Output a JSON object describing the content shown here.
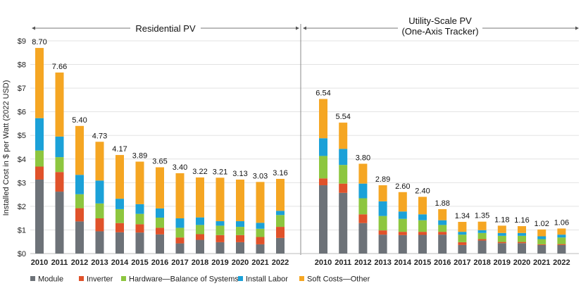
{
  "chart_data": {
    "type": "bar",
    "stacked": true,
    "ylabel": "Installed Cost in $ per Watt (2022 USD)",
    "ylim": [
      0,
      9
    ],
    "yticks": [
      "$0",
      "$1",
      "$2",
      "$3",
      "$4",
      "$5",
      "$6",
      "$7",
      "$8",
      "$9"
    ],
    "grid": true,
    "legend_position": "bottom",
    "series_names": [
      "Module",
      "Inverter",
      "Hardware—Balance of Systems",
      "Install Labor",
      "Soft Costs—Other"
    ],
    "colors": [
      "#6d7278",
      "#e0522a",
      "#8dc63f",
      "#1ba1d8",
      "#f5a623"
    ],
    "panels": [
      {
        "title": "Residential PV",
        "categories": [
          "2010",
          "2011",
          "2012",
          "2013",
          "2014",
          "2015",
          "2016",
          "2017",
          "2018",
          "2019",
          "2020",
          "2021",
          "2022"
        ],
        "totals": [
          "8.70",
          "7.66",
          "5.40",
          "4.73",
          "4.17",
          "3.89",
          "3.65",
          "3.40",
          "3.22",
          "3.21",
          "3.13",
          "3.03",
          "3.16"
        ],
        "series": [
          {
            "name": "Module",
            "values": [
              3.13,
              2.62,
              1.36,
              0.94,
              0.9,
              0.89,
              0.81,
              0.43,
              0.58,
              0.48,
              0.48,
              0.39,
              0.66
            ]
          },
          {
            "name": "Inverter",
            "values": [
              0.55,
              0.83,
              0.56,
              0.55,
              0.39,
              0.35,
              0.28,
              0.25,
              0.24,
              0.3,
              0.3,
              0.31,
              0.47
            ]
          },
          {
            "name": "Hardware—Balance of Systems",
            "values": [
              0.68,
              0.63,
              0.59,
              0.63,
              0.59,
              0.44,
              0.43,
              0.41,
              0.39,
              0.4,
              0.35,
              0.35,
              0.5
            ]
          },
          {
            "name": "Install Labor",
            "values": [
              1.37,
              0.87,
              0.82,
              0.97,
              0.44,
              0.41,
              0.39,
              0.4,
              0.32,
              0.19,
              0.24,
              0.25,
              0.18
            ]
          },
          {
            "name": "Soft Costs—Other",
            "values": [
              2.97,
              2.71,
              2.07,
              1.64,
              1.85,
              1.8,
              1.74,
              1.91,
              1.69,
              1.84,
              1.76,
              1.73,
              1.35
            ]
          }
        ]
      },
      {
        "title": "Utility-Scale PV",
        "subtitle": "(One-Axis Tracker)",
        "categories": [
          "2010",
          "2011",
          "2012",
          "2013",
          "2014",
          "2015",
          "2016",
          "2017",
          "2018",
          "2019",
          "2020",
          "2021",
          "2022"
        ],
        "totals": [
          "6.54",
          "5.54",
          "3.80",
          "2.89",
          "2.60",
          "2.40",
          "1.88",
          "1.34",
          "1.35",
          "1.18",
          "1.16",
          "1.02",
          "1.06"
        ],
        "series": [
          {
            "name": "Module",
            "values": [
              2.89,
              2.57,
              1.29,
              0.8,
              0.78,
              0.79,
              0.8,
              0.36,
              0.55,
              0.44,
              0.44,
              0.36,
              0.36
            ]
          },
          {
            "name": "Inverter",
            "values": [
              0.29,
              0.39,
              0.37,
              0.18,
              0.14,
              0.13,
              0.12,
              0.12,
              0.06,
              0.05,
              0.05,
              0.03,
              0.04
            ]
          },
          {
            "name": "Hardware—Balance of Systems",
            "values": [
              0.95,
              0.79,
              0.68,
              0.61,
              0.55,
              0.49,
              0.29,
              0.32,
              0.26,
              0.26,
              0.26,
              0.22,
              0.28
            ]
          },
          {
            "name": "Install Labor",
            "values": [
              0.75,
              0.68,
              0.62,
              0.62,
              0.31,
              0.25,
              0.2,
              0.12,
              0.12,
              0.12,
              0.12,
              0.12,
              0.12
            ]
          },
          {
            "name": "Soft Costs—Other",
            "values": [
              1.66,
              1.11,
              0.84,
              0.68,
              0.82,
              0.74,
              0.47,
              0.42,
              0.36,
              0.31,
              0.29,
              0.29,
              0.26
            ]
          }
        ]
      }
    ]
  }
}
